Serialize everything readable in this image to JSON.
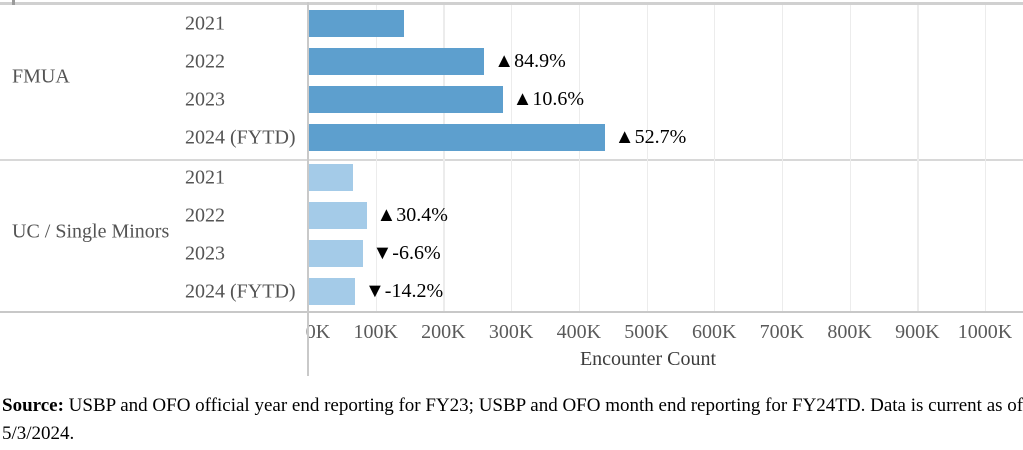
{
  "chart_data": {
    "type": "bar",
    "orientation": "horizontal",
    "title": "",
    "xlabel": "Encounter Count",
    "ylabel": "",
    "xlim": [
      0,
      1000000
    ],
    "grid": true,
    "x_tick_labels": [
      "0K",
      "100K",
      "200K",
      "300K",
      "400K",
      "500K",
      "600K",
      "700K",
      "800K",
      "900K",
      "1000K"
    ],
    "groups": [
      {
        "label": "FMUA",
        "bar_color": "#5d9fce",
        "rows": [
          {
            "year": "2021",
            "value": 140000,
            "change_label": null
          },
          {
            "year": "2022",
            "value": 259000,
            "change_label": "▲84.9%"
          },
          {
            "year": "2023",
            "value": 286000,
            "change_label": "▲10.6%"
          },
          {
            "year": "2024 (FYTD)",
            "value": 437000,
            "change_label": "▲52.7%"
          }
        ]
      },
      {
        "label": "UC / Single Minors",
        "bar_color": "#a4cbe8",
        "rows": [
          {
            "year": "2021",
            "value": 65000,
            "change_label": null
          },
          {
            "year": "2022",
            "value": 85000,
            "change_label": "▲30.4%"
          },
          {
            "year": "2023",
            "value": 79000,
            "change_label": "▼-6.6%"
          },
          {
            "year": "2024 (FYTD)",
            "value": 68000,
            "change_label": "▼-14.2%"
          }
        ]
      }
    ]
  },
  "source_note": {
    "label": "Source:",
    "text": " USBP and OFO official year end reporting for FY23; USBP and OFO month end reporting for FY24TD. Data is current as of",
    "text_line2": "5/3/2024."
  },
  "colors": {
    "fmua_bar": "#5d9fce",
    "uc_bar": "#a4cbe8",
    "gridline": "#ececec",
    "frame_line": "#c9c9c9",
    "label_gray": "#545454",
    "change_label": "#000000"
  }
}
